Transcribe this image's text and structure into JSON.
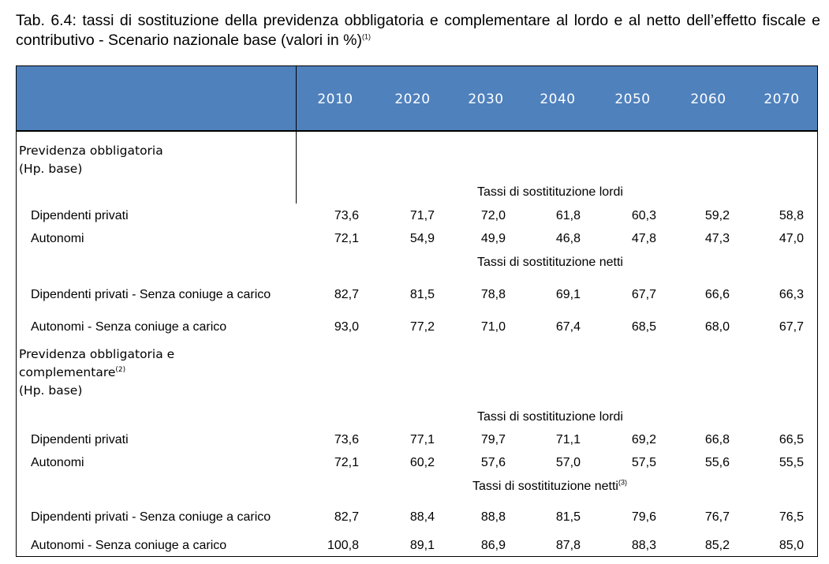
{
  "title": {
    "text": "Tab. 6.4: tassi di sostituzione della previdenza obbligatoria e complementare al lordo e al netto dell’effetto fiscale e contributivo - Scenario nazionale base (valori in %)",
    "note": "(1)"
  },
  "columns": [
    "2010",
    "2020",
    "2030",
    "2040",
    "2050",
    "2060",
    "2070"
  ],
  "sections": [
    {
      "heading_lines": [
        "Previdenza obbligatoria",
        "(Hp. base)"
      ],
      "heading_note": "",
      "groups": [
        {
          "subheading": "Tassi di sostitituzione lordi",
          "note": "",
          "rows": [
            {
              "label": "Dipendenti privati",
              "values": [
                "73,6",
                "71,7",
                "72,0",
                "61,8",
                "60,3",
                "59,2",
                "58,8"
              ]
            },
            {
              "label": "Autonomi",
              "values": [
                "72,1",
                "54,9",
                "49,9",
                "46,8",
                "47,8",
                "47,3",
                "47,0"
              ]
            }
          ]
        },
        {
          "subheading": "Tassi di sostitituzione netti",
          "note": "",
          "rows": [
            {
              "label": "Dipendenti privati - Senza coniuge a carico",
              "values": [
                "82,7",
                "81,5",
                "78,8",
                "69,1",
                "67,7",
                "66,6",
                "66,3"
              ]
            },
            {
              "label": "Autonomi - Senza coniuge a carico",
              "values": [
                "93,0",
                "77,2",
                "71,0",
                "67,4",
                "68,5",
                "68,0",
                "67,7"
              ]
            }
          ]
        }
      ]
    },
    {
      "heading_lines": [
        "Previdenza obbligatoria e",
        "complementare",
        "(Hp. base)"
      ],
      "heading_note": "(2)",
      "groups": [
        {
          "subheading": "Tassi di sostitituzione lordi",
          "note": "",
          "rows": [
            {
              "label": "Dipendenti privati",
              "values": [
                "73,6",
                "77,1",
                "79,7",
                "71,1",
                "69,2",
                "66,8",
                "66,5"
              ]
            },
            {
              "label": "Autonomi",
              "values": [
                "72,1",
                "60,2",
                "57,6",
                "57,0",
                "57,5",
                "55,6",
                "55,5"
              ]
            }
          ]
        },
        {
          "subheading": "Tassi di sostitituzione netti",
          "note": "(3)",
          "rows": [
            {
              "label": "Dipendenti privati - Senza coniuge a carico",
              "values": [
                "82,7",
                "88,4",
                "88,8",
                "81,5",
                "79,6",
                "76,7",
                "76,5"
              ]
            },
            {
              "label": "Autonomi - Senza coniuge a carico",
              "values": [
                "100,8",
                "89,1",
                "86,9",
                "87,8",
                "88,3",
                "85,2",
                "85,0"
              ]
            }
          ]
        }
      ]
    }
  ]
}
